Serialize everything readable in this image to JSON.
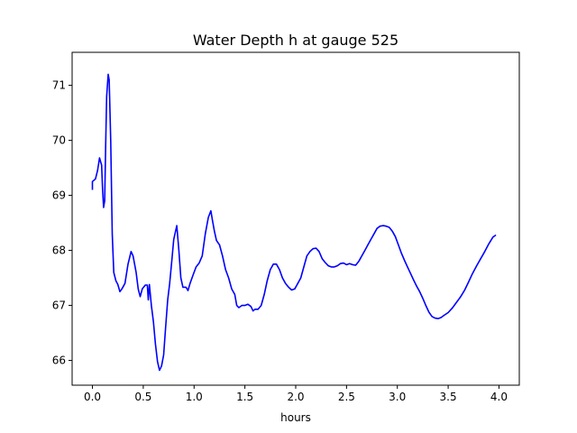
{
  "chart_data": {
    "type": "line",
    "title": "Water Depth h at gauge 525",
    "xlabel": "hours",
    "ylabel": "",
    "xlim": [
      -0.2,
      4.2
    ],
    "ylim": [
      65.55,
      71.6
    ],
    "x_ticks": [
      0.0,
      0.5,
      1.0,
      1.5,
      2.0,
      2.5,
      3.0,
      3.5,
      4.0
    ],
    "x_tick_labels": [
      "0.0",
      "0.5",
      "1.0",
      "1.5",
      "2.0",
      "2.5",
      "3.0",
      "3.5",
      "4.0"
    ],
    "y_ticks": [
      66,
      67,
      68,
      69,
      70,
      71
    ],
    "y_tick_labels": [
      "66",
      "67",
      "68",
      "69",
      "70",
      "71"
    ],
    "grid": false,
    "legend": "none",
    "series": [
      {
        "color": "#0000ff",
        "points": [
          [
            0.0,
            69.1
          ],
          [
            0.0,
            69.25
          ],
          [
            0.03,
            69.3
          ],
          [
            0.05,
            69.45
          ],
          [
            0.07,
            69.68
          ],
          [
            0.09,
            69.55
          ],
          [
            0.1,
            69.1
          ],
          [
            0.11,
            68.78
          ],
          [
            0.12,
            68.9
          ],
          [
            0.13,
            69.9
          ],
          [
            0.14,
            70.8
          ],
          [
            0.155,
            71.2
          ],
          [
            0.165,
            71.1
          ],
          [
            0.18,
            70.0
          ],
          [
            0.195,
            68.3
          ],
          [
            0.21,
            67.6
          ],
          [
            0.23,
            67.45
          ],
          [
            0.25,
            67.38
          ],
          [
            0.27,
            67.25
          ],
          [
            0.29,
            67.3
          ],
          [
            0.32,
            67.4
          ],
          [
            0.35,
            67.75
          ],
          [
            0.38,
            67.98
          ],
          [
            0.4,
            67.9
          ],
          [
            0.43,
            67.6
          ],
          [
            0.45,
            67.3
          ],
          [
            0.47,
            67.16
          ],
          [
            0.49,
            67.3
          ],
          [
            0.52,
            67.37
          ],
          [
            0.54,
            67.37
          ],
          [
            0.55,
            67.1
          ],
          [
            0.56,
            67.38
          ],
          [
            0.58,
            67.0
          ],
          [
            0.6,
            66.7
          ],
          [
            0.62,
            66.3
          ],
          [
            0.64,
            65.98
          ],
          [
            0.66,
            65.82
          ],
          [
            0.68,
            65.9
          ],
          [
            0.7,
            66.1
          ],
          [
            0.72,
            66.6
          ],
          [
            0.74,
            67.1
          ],
          [
            0.76,
            67.4
          ],
          [
            0.78,
            67.8
          ],
          [
            0.8,
            68.2
          ],
          [
            0.83,
            68.45
          ],
          [
            0.85,
            68.0
          ],
          [
            0.87,
            67.5
          ],
          [
            0.89,
            67.33
          ],
          [
            0.92,
            67.33
          ],
          [
            0.94,
            67.27
          ],
          [
            0.96,
            67.4
          ],
          [
            0.99,
            67.55
          ],
          [
            1.02,
            67.7
          ],
          [
            1.05,
            67.77
          ],
          [
            1.08,
            67.9
          ],
          [
            1.11,
            68.3
          ],
          [
            1.14,
            68.6
          ],
          [
            1.165,
            68.72
          ],
          [
            1.18,
            68.55
          ],
          [
            1.2,
            68.35
          ],
          [
            1.22,
            68.18
          ],
          [
            1.25,
            68.1
          ],
          [
            1.28,
            67.9
          ],
          [
            1.31,
            67.65
          ],
          [
            1.34,
            67.5
          ],
          [
            1.37,
            67.3
          ],
          [
            1.4,
            67.2
          ],
          [
            1.42,
            67.0
          ],
          [
            1.44,
            66.96
          ],
          [
            1.47,
            67.0
          ],
          [
            1.5,
            67.0
          ],
          [
            1.53,
            67.02
          ],
          [
            1.56,
            66.98
          ],
          [
            1.58,
            66.9
          ],
          [
            1.6,
            66.93
          ],
          [
            1.63,
            66.93
          ],
          [
            1.66,
            67.0
          ],
          [
            1.69,
            67.2
          ],
          [
            1.72,
            67.45
          ],
          [
            1.75,
            67.65
          ],
          [
            1.78,
            67.75
          ],
          [
            1.81,
            67.75
          ],
          [
            1.84,
            67.65
          ],
          [
            1.87,
            67.5
          ],
          [
            1.9,
            67.4
          ],
          [
            1.93,
            67.33
          ],
          [
            1.96,
            67.28
          ],
          [
            1.99,
            67.3
          ],
          [
            2.02,
            67.4
          ],
          [
            2.05,
            67.5
          ],
          [
            2.08,
            67.7
          ],
          [
            2.11,
            67.9
          ],
          [
            2.14,
            67.98
          ],
          [
            2.17,
            68.03
          ],
          [
            2.2,
            68.04
          ],
          [
            2.23,
            67.98
          ],
          [
            2.26,
            67.85
          ],
          [
            2.29,
            67.78
          ],
          [
            2.32,
            67.72
          ],
          [
            2.35,
            67.7
          ],
          [
            2.38,
            67.7
          ],
          [
            2.41,
            67.72
          ],
          [
            2.44,
            67.76
          ],
          [
            2.47,
            67.77
          ],
          [
            2.5,
            67.74
          ],
          [
            2.53,
            67.76
          ],
          [
            2.56,
            67.74
          ],
          [
            2.59,
            67.73
          ],
          [
            2.62,
            67.8
          ],
          [
            2.65,
            67.9
          ],
          [
            2.68,
            68.0
          ],
          [
            2.71,
            68.1
          ],
          [
            2.74,
            68.2
          ],
          [
            2.77,
            68.3
          ],
          [
            2.8,
            68.4
          ],
          [
            2.83,
            68.44
          ],
          [
            2.86,
            68.45
          ],
          [
            2.89,
            68.44
          ],
          [
            2.92,
            68.42
          ],
          [
            2.95,
            68.35
          ],
          [
            2.98,
            68.25
          ],
          [
            3.01,
            68.1
          ],
          [
            3.04,
            67.95
          ],
          [
            3.07,
            67.82
          ],
          [
            3.1,
            67.7
          ],
          [
            3.13,
            67.58
          ],
          [
            3.16,
            67.46
          ],
          [
            3.19,
            67.35
          ],
          [
            3.22,
            67.25
          ],
          [
            3.25,
            67.13
          ],
          [
            3.28,
            67.0
          ],
          [
            3.31,
            66.88
          ],
          [
            3.34,
            66.8
          ],
          [
            3.37,
            66.77
          ],
          [
            3.4,
            66.76
          ],
          [
            3.43,
            66.78
          ],
          [
            3.46,
            66.82
          ],
          [
            3.5,
            66.87
          ],
          [
            3.54,
            66.95
          ],
          [
            3.58,
            67.05
          ],
          [
            3.62,
            67.15
          ],
          [
            3.66,
            67.27
          ],
          [
            3.7,
            67.42
          ],
          [
            3.74,
            67.58
          ],
          [
            3.78,
            67.72
          ],
          [
            3.82,
            67.85
          ],
          [
            3.86,
            67.98
          ],
          [
            3.9,
            68.12
          ],
          [
            3.94,
            68.24
          ],
          [
            3.97,
            68.28
          ]
        ]
      }
    ]
  }
}
